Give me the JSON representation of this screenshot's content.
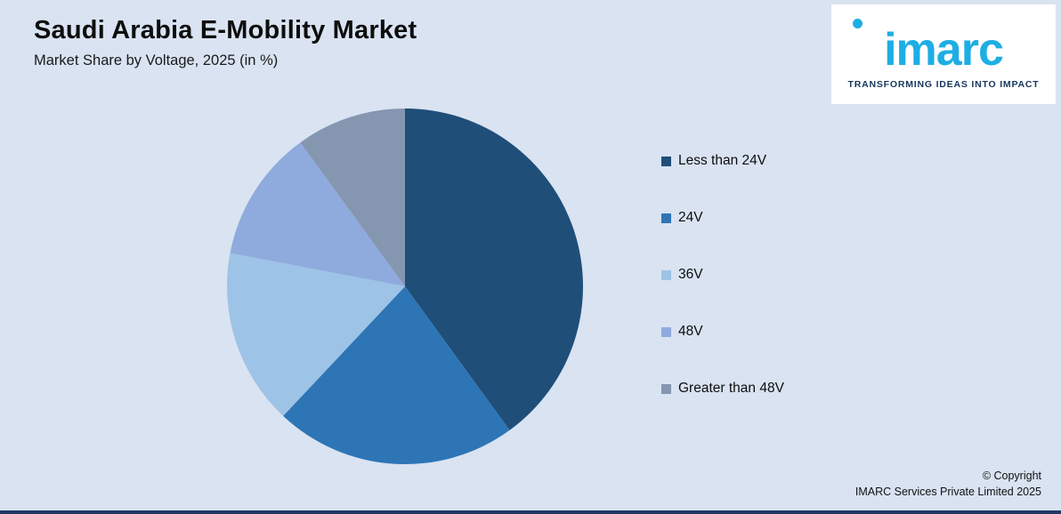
{
  "header": {
    "title": "Saudi Arabia E-Mobility Market",
    "subtitle": "Market Share by Voltage, 2025 (in %)"
  },
  "logo": {
    "text": "imarc",
    "tagline": "TRANSFORMING IDEAS INTO IMPACT",
    "brand_color": "#1daee4",
    "tagline_color": "#17365d"
  },
  "chart_data": {
    "type": "pie",
    "title": "Saudi Arabia E-Mobility Market",
    "subtitle": "Market Share by Voltage, 2025 (in %)",
    "unit": "%",
    "start_angle_deg_from_top": 0,
    "direction": "clockwise",
    "legend_position": "right",
    "data_labels_shown": false,
    "slices": [
      {
        "label": "Less than 24V",
        "value": 40,
        "color": "#1F4E79"
      },
      {
        "label": "24V",
        "value": 22,
        "color": "#2E75B6"
      },
      {
        "label": "36V",
        "value": 16,
        "color": "#9DC3E6"
      },
      {
        "label": "48V",
        "value": 12,
        "color": "#8FAADC"
      },
      {
        "label": "Greater than 48V",
        "value": 10,
        "color": "#8496B0"
      }
    ]
  },
  "footer": {
    "copyright_line1": "© Copyright",
    "copyright_line2": "IMARC Services Private Limited 2025"
  },
  "colors": {
    "background": "#d9e3f2",
    "bottom_bar": "#1f3864"
  }
}
